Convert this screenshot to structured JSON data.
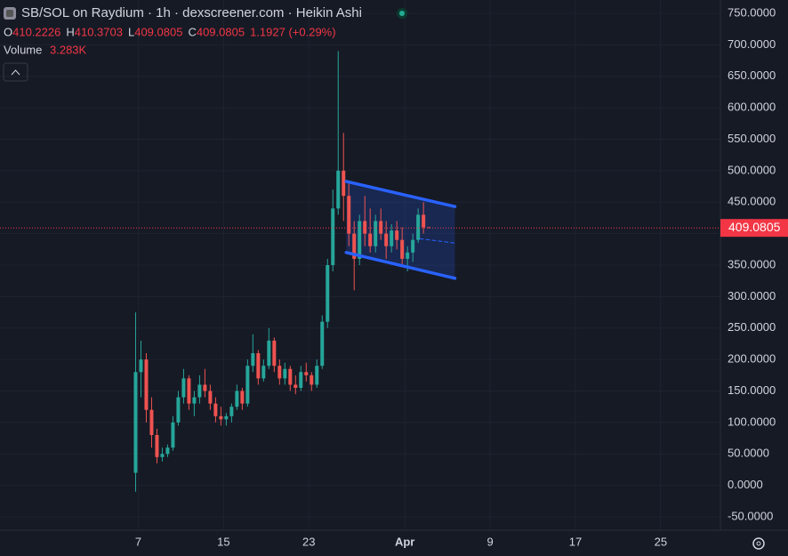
{
  "chart_data": {
    "type": "candlestick",
    "title": "SB/SOL on Raydium · 1h · dexscreener.com · Heikin Ashi",
    "ohlc_legend": [
      {
        "label": "O",
        "value": "410.2226"
      },
      {
        "label": "H",
        "value": "410.3703"
      },
      {
        "label": "L",
        "value": "409.0805"
      },
      {
        "label": "C",
        "value": "409.0805"
      }
    ],
    "change": "1.1927 (+0.29%)",
    "volume_label": "Volume",
    "volume_value": "3.283K",
    "x": [
      6.75,
      7.25,
      7.75,
      8.25,
      8.75,
      9.25,
      9.75,
      10.25,
      10.75,
      11.25,
      11.75,
      12.25,
      12.75,
      13.25,
      13.75,
      14.25,
      14.75,
      15.25,
      15.75,
      16.25,
      16.75,
      17.25,
      17.75,
      18.25,
      18.75,
      19.25,
      19.75,
      20.25,
      20.75,
      21.25,
      21.75,
      22.25,
      22.75,
      23.25,
      23.75,
      24.25,
      24.75,
      25.25,
      25.75,
      26.25,
      26.75,
      27.25,
      27.75,
      28.25,
      28.75,
      29.25,
      29.75,
      30.25,
      30.75,
      31.25,
      31.75,
      32.25,
      32.75,
      33.25,
      33.75,
      34.25
    ],
    "open": [
      20,
      180,
      200,
      120,
      80,
      45,
      50,
      60,
      100,
      140,
      170,
      130,
      140,
      160,
      150,
      130,
      110,
      105,
      110,
      125,
      150,
      130,
      190,
      210,
      170,
      190,
      230,
      190,
      170,
      185,
      160,
      155,
      180,
      175,
      160,
      190,
      260,
      350,
      440,
      500,
      460,
      400,
      360,
      420,
      400,
      380,
      420,
      400,
      380,
      405,
      390,
      360,
      370,
      390,
      430,
      410.2226
    ],
    "high": [
      275,
      230,
      210,
      140,
      90,
      60,
      65,
      110,
      150,
      185,
      175,
      150,
      175,
      185,
      160,
      140,
      125,
      115,
      130,
      160,
      155,
      200,
      240,
      215,
      200,
      250,
      235,
      200,
      195,
      190,
      175,
      190,
      195,
      180,
      200,
      270,
      360,
      470,
      690,
      560,
      480,
      420,
      430,
      460,
      440,
      430,
      440,
      420,
      415,
      420,
      410,
      380,
      400,
      440,
      450,
      410.3703
    ],
    "low": [
      -10,
      140,
      100,
      60,
      35,
      38,
      45,
      55,
      95,
      130,
      120,
      110,
      130,
      140,
      120,
      100,
      95,
      95,
      100,
      120,
      120,
      125,
      180,
      160,
      165,
      185,
      180,
      160,
      160,
      150,
      145,
      150,
      165,
      150,
      155,
      185,
      250,
      340,
      430,
      420,
      380,
      310,
      350,
      380,
      370,
      370,
      390,
      360,
      370,
      375,
      350,
      340,
      355,
      385,
      400,
      409.0805
    ],
    "close": [
      180,
      200,
      120,
      80,
      45,
      50,
      60,
      100,
      140,
      170,
      130,
      140,
      160,
      150,
      130,
      110,
      105,
      110,
      125,
      150,
      130,
      190,
      210,
      170,
      190,
      230,
      190,
      170,
      185,
      160,
      155,
      180,
      175,
      160,
      190,
      260,
      350,
      440,
      500,
      460,
      400,
      360,
      420,
      400,
      380,
      420,
      400,
      380,
      405,
      390,
      360,
      370,
      390,
      430,
      410,
      409.0805
    ],
    "up_color": "#26a69a",
    "down_color": "#ef5350",
    "xlim": [
      -5.97,
      61.6
    ],
    "xticks": [
      7,
      15,
      23,
      {
        "value": 32,
        "label": "Apr"
      },
      {
        "value": 40,
        "label": "9"
      },
      {
        "value": 48,
        "label": "17"
      },
      {
        "value": 56,
        "label": "25"
      }
    ],
    "ylim": [
      -71.2,
      771.2
    ],
    "yticks": [
      {
        "value": -50,
        "label": "-50.0000"
      },
      {
        "value": 0,
        "label": "0.0000"
      },
      {
        "value": 50,
        "label": "50.0000"
      },
      {
        "value": 100,
        "label": "100.0000"
      },
      {
        "value": 150,
        "label": "150.0000"
      },
      {
        "value": 200,
        "label": "200.0000"
      },
      {
        "value": 250,
        "label": "250.0000"
      },
      {
        "value": 300,
        "label": "300.0000"
      },
      {
        "value": 350,
        "label": "350.0000"
      },
      {
        "value": 400,
        "label": "400.0000"
      },
      {
        "value": 450,
        "label": "450.0000"
      },
      {
        "value": 500,
        "label": "500.0000"
      },
      {
        "value": 550,
        "label": "550.0000"
      },
      {
        "value": 600,
        "label": "600.0000"
      },
      {
        "value": 650,
        "label": "650.0000"
      },
      {
        "value": 700,
        "label": "700.0000"
      },
      {
        "value": 750,
        "label": "750.0000"
      }
    ],
    "last_price": {
      "value": 409.0805,
      "label": "409.0805"
    },
    "grid": true,
    "channel": {
      "color": "#2962ff",
      "upper": {
        "x": [
          26.5,
          36.7
        ],
        "y": [
          483,
          443
        ]
      },
      "lower": {
        "x": [
          26.5,
          36.7
        ],
        "y": [
          370,
          329
        ]
      },
      "mid": {
        "x": [
          33.4,
          36.7
        ],
        "y": [
          392,
          385
        ]
      }
    }
  }
}
